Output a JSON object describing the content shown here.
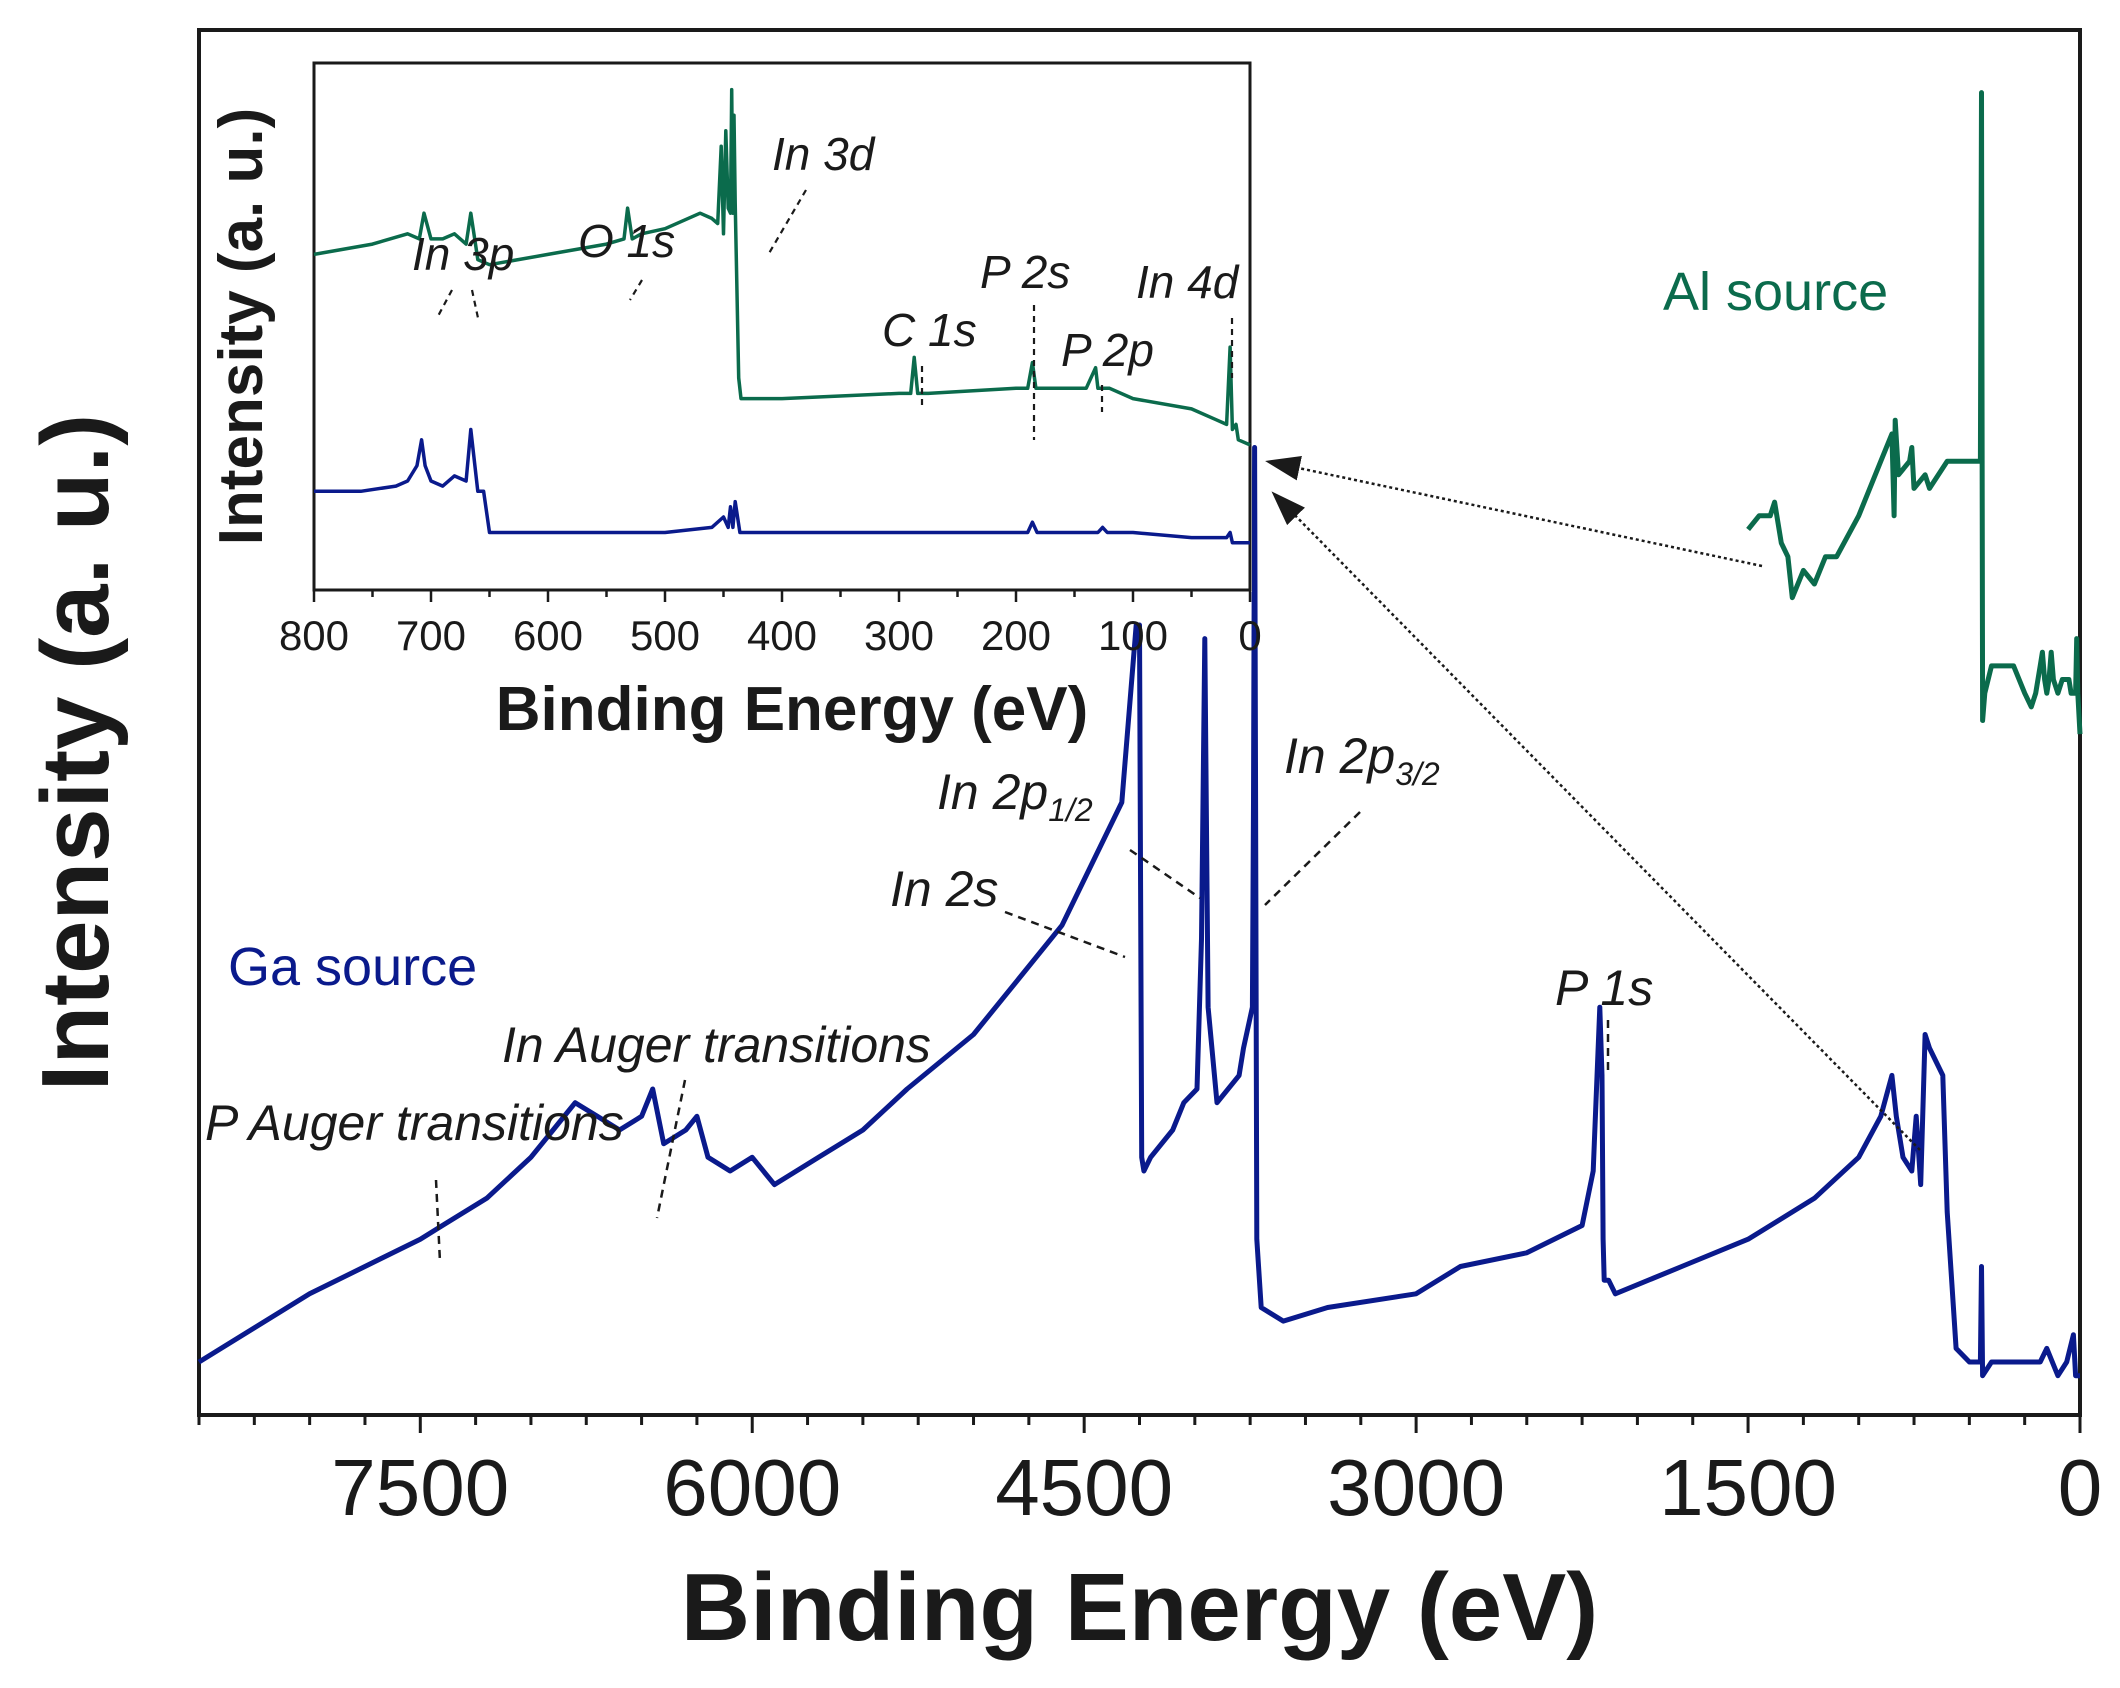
{
  "chart_data": [
    {
      "id": "main",
      "type": "line",
      "title": "",
      "xlabel": "Binding Energy (eV)",
      "ylabel": "Intensity (a. u.)",
      "xlim": [
        8500,
        0
      ],
      "x_reversed": true,
      "ylim": [
        0,
        100
      ],
      "y_ticks_shown": false,
      "x_ticks": [
        {
          "value": 7500,
          "label": "7500"
        },
        {
          "value": 6000,
          "label": "6000"
        },
        {
          "value": 4500,
          "label": "4500"
        },
        {
          "value": 3000,
          "label": "3000"
        },
        {
          "value": 1500,
          "label": "1500"
        },
        {
          "value": 0,
          "label": "0"
        }
      ],
      "grid": false,
      "series": [
        {
          "name": "Ga source",
          "color": "#0a1a8c",
          "x": [
            8500,
            8000,
            7500,
            7400,
            7200,
            7000,
            6900,
            6800,
            6700,
            6600,
            6500,
            6450,
            6400,
            6300,
            6250,
            6200,
            6100,
            6000,
            5900,
            5700,
            5500,
            5300,
            5000,
            4800,
            4600,
            4450,
            4330,
            4265,
            4250,
            4240,
            4230,
            4200,
            4100,
            4050,
            3990,
            3970,
            3955,
            3940,
            3900,
            3800,
            3780,
            3740,
            3735,
            3730,
            3720,
            3700,
            3600,
            3400,
            3000,
            2800,
            2500,
            2250,
            2200,
            2170,
            2160,
            2155,
            2150,
            2130,
            2100,
            1800,
            1500,
            1200,
            1000,
            900,
            850,
            830,
            800,
            760,
            740,
            720,
            700,
            680,
            620,
            600,
            560,
            500,
            450,
            445,
            440,
            400,
            300,
            200,
            180,
            150,
            100,
            60,
            30,
            20,
            0
          ],
          "y": [
            3,
            8,
            12,
            13,
            15,
            18,
            20,
            22,
            21,
            20,
            21,
            23,
            19,
            20,
            21,
            18,
            17,
            18,
            16,
            18,
            20,
            23,
            27,
            31,
            35,
            40,
            44,
            57,
            57,
            18,
            17,
            18,
            20,
            22,
            23,
            34,
            56,
            29,
            22,
            24,
            26,
            29,
            44,
            70,
            12,
            7,
            6,
            7,
            8,
            10,
            11,
            13,
            17,
            29,
            24,
            12,
            9,
            9,
            8,
            10,
            12,
            15,
            18,
            21,
            24,
            21,
            18,
            17,
            21,
            16,
            27,
            26,
            24,
            14,
            4,
            3,
            3,
            10,
            2,
            3,
            3,
            3,
            3,
            4,
            2,
            3,
            5,
            2,
            2
          ]
        },
        {
          "name": "Al source",
          "color": "#0b6b4c",
          "x": [
            1500,
            1450,
            1400,
            1380,
            1350,
            1320,
            1300,
            1250,
            1200,
            1150,
            1100,
            1000,
            900,
            850,
            840,
            835,
            820,
            770,
            760,
            750,
            700,
            680,
            600,
            500,
            450,
            445,
            440,
            435,
            430,
            400,
            300,
            250,
            220,
            200,
            180,
            170,
            160,
            150,
            140,
            130,
            120,
            100,
            80,
            60,
            50,
            40,
            30,
            20,
            15,
            10,
            0
          ],
          "y": [
            64,
            65,
            65,
            66,
            63,
            62,
            59,
            61,
            60,
            62,
            62,
            65,
            69,
            71,
            65,
            72,
            68,
            69,
            70,
            67,
            68,
            67,
            69,
            69,
            69,
            96,
            50,
            51,
            52,
            54,
            54,
            52,
            51,
            52,
            54,
            55,
            53,
            52,
            53,
            55,
            53,
            52,
            53,
            53,
            53,
            52,
            52,
            52,
            56,
            52,
            49
          ]
        }
      ],
      "annotations": [
        {
          "text": "P Auger transitions",
          "x": 7440
        },
        {
          "text": "In Auger transitions",
          "x": 6450
        },
        {
          "text": "In 2s",
          "x": 4240
        },
        {
          "text": "In 2p",
          "sub": "1/2",
          "x": 3960
        },
        {
          "text": "In 2p",
          "sub": "3/2",
          "x": 3730
        },
        {
          "text": "P 1s",
          "x": 2150
        }
      ]
    },
    {
      "id": "inset",
      "type": "line",
      "title": "",
      "xlabel": "Binding Energy (eV)",
      "ylabel": "Intensity (a. u.)",
      "xlim": [
        800,
        0
      ],
      "x_reversed": true,
      "ylim": [
        0,
        100
      ],
      "y_ticks_shown": false,
      "x_ticks": [
        {
          "value": 800,
          "label": "800"
        },
        {
          "value": 700,
          "label": "700"
        },
        {
          "value": 600,
          "label": "600"
        },
        {
          "value": 500,
          "label": "500"
        },
        {
          "value": 400,
          "label": "400"
        },
        {
          "value": 300,
          "label": "300"
        },
        {
          "value": 200,
          "label": "200"
        },
        {
          "value": 100,
          "label": "100"
        },
        {
          "value": 0,
          "label": "0"
        }
      ],
      "grid": false,
      "series": [
        {
          "name": "",
          "color": "#0b6b4c",
          "x": [
            800,
            750,
            720,
            710,
            706,
            700,
            690,
            680,
            670,
            666,
            662,
            660,
            650,
            600,
            550,
            535,
            532,
            528,
            520,
            500,
            470,
            460,
            455,
            452,
            450,
            448,
            446,
            444,
            443,
            442,
            441,
            440,
            437,
            435,
            400,
            300,
            290,
            287,
            284,
            281,
            275,
            200,
            190,
            186,
            183,
            180,
            170,
            140,
            132,
            130,
            128,
            120,
            100,
            50,
            30,
            20,
            17,
            15,
            12,
            10,
            0
          ],
          "y": [
            64,
            66,
            68,
            67,
            72,
            67,
            67,
            68,
            66,
            72,
            66,
            63,
            62,
            64,
            66,
            67,
            73,
            67,
            68,
            69,
            72,
            71,
            70,
            85,
            68,
            88,
            73,
            72,
            96,
            72,
            91,
            74,
            40,
            36,
            36,
            37,
            37,
            44,
            37,
            37,
            37,
            38,
            38,
            43,
            38,
            38,
            38,
            38,
            42,
            38,
            38,
            38,
            36,
            34,
            32,
            31,
            46,
            30,
            31,
            28,
            27
          ]
        },
        {
          "name": "",
          "color": "#0a1a8c",
          "x": [
            800,
            760,
            730,
            720,
            712,
            708,
            705,
            700,
            690,
            680,
            670,
            666,
            663,
            660,
            655,
            650,
            600,
            500,
            460,
            450,
            446,
            444,
            442,
            440,
            436,
            400,
            300,
            190,
            186,
            182,
            130,
            126,
            122,
            100,
            50,
            20,
            17,
            15,
            10,
            0
          ],
          "y": [
            18,
            18,
            19,
            20,
            23,
            28,
            23,
            20,
            19,
            21,
            20,
            30,
            24,
            18,
            18,
            10,
            10,
            10,
            11,
            13,
            11,
            15,
            11,
            16,
            10,
            10,
            10,
            10,
            12,
            10,
            10,
            11,
            10,
            10,
            9,
            9,
            10,
            8,
            8,
            8
          ]
        }
      ],
      "annotations": [
        {
          "text": "In 3p",
          "x": 668
        },
        {
          "text": "O 1s",
          "x": 532
        },
        {
          "text": "In 3d",
          "x": 440
        },
        {
          "text": "C 1s",
          "x": 285
        },
        {
          "text": "P 2s",
          "x": 188
        },
        {
          "text": "P 2p",
          "x": 130
        },
        {
          "text": "In 4d",
          "x": 17
        }
      ]
    }
  ],
  "legend_labels": {
    "al": "Al source",
    "ga": "Ga source"
  },
  "colors": {
    "ga": "#0a1a8c",
    "al": "#0b6b4c",
    "axis": "#1a1a1a",
    "annotation": "#1a1a1a"
  }
}
